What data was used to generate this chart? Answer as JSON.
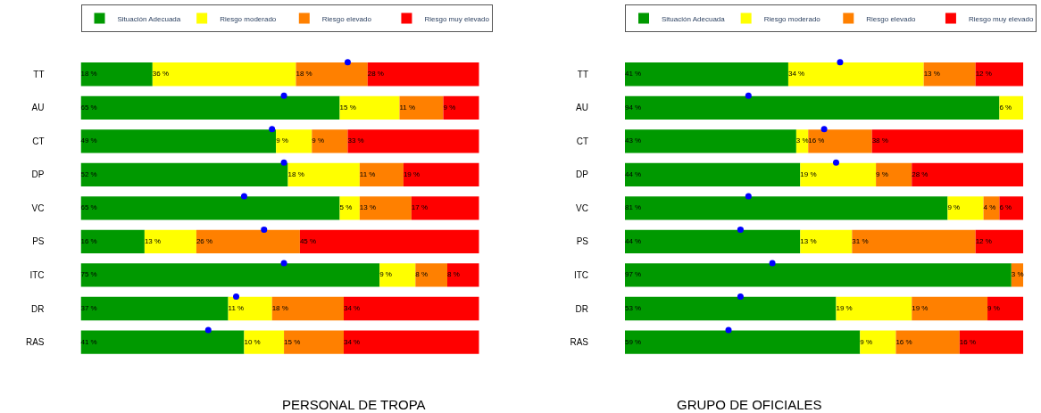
{
  "chart_data": [
    {
      "type": "bar",
      "orientation": "horizontal",
      "stacked": true,
      "title": "PERSONAL DE TROPA",
      "legend": "top",
      "tick_labels": "y",
      "xlim": [
        0,
        100
      ],
      "categories": [
        "TT",
        "AU",
        "CT",
        "DP",
        "VC",
        "PS",
        "ITC",
        "DR",
        "RAS"
      ],
      "series": [
        {
          "name": "Situación Adecuada",
          "color": "#009900",
          "values": [
            18,
            65,
            49,
            52,
            65,
            16,
            75,
            37,
            41
          ],
          "value_labels": [
            "18 %",
            "65 %",
            "49 %",
            "52 %",
            "65 %",
            "16 %",
            "75 %",
            "37 %",
            "41 %"
          ]
        },
        {
          "name": "Riesgo moderado",
          "color": "#ffff00",
          "values": [
            36,
            15,
            9,
            18,
            5,
            13,
            9,
            11,
            10
          ],
          "value_labels": [
            "36 %",
            "15 %",
            "9 %",
            "18 %",
            "5 %",
            "13 %",
            "9 %",
            "11 %",
            "10 %"
          ]
        },
        {
          "name": "Riesgo elevado",
          "color": "#ff8000",
          "values": [
            18,
            11,
            9,
            11,
            13,
            26,
            8,
            18,
            15
          ],
          "value_labels": [
            "18 %",
            "11 %",
            "9 %",
            "11 %",
            "13 %",
            "26 %",
            "8 %",
            "18 %",
            "15 %"
          ]
        },
        {
          "name": "Riesgo muy elevado",
          "color": "#ff0000",
          "values": [
            28,
            9,
            33,
            19,
            17,
            45,
            8,
            34,
            34
          ],
          "value_labels": [
            "28 %",
            "9 %",
            "33 %",
            "19 %",
            "17 %",
            "45 %",
            "8 %",
            "34 %",
            "34 %"
          ]
        },
        {
          "type": "scatter",
          "marker": "circle",
          "color": "#0000ff",
          "values": [
            67,
            51,
            48,
            51,
            41,
            46,
            51,
            39,
            32
          ]
        }
      ]
    },
    {
      "type": "bar",
      "orientation": "horizontal",
      "stacked": true,
      "title": "GRUPO DE OFICIALES",
      "legend": "top",
      "tick_labels": "y",
      "xlim": [
        0,
        100
      ],
      "categories": [
        "TT",
        "AU",
        "CT",
        "DP",
        "VC",
        "PS",
        "ITC",
        "DR",
        "RAS"
      ],
      "series": [
        {
          "name": "Situación Adecuada",
          "color": "#009900",
          "values": [
            41,
            94,
            43,
            44,
            81,
            44,
            97,
            53,
            59
          ],
          "value_labels": [
            "41 %",
            "94 %",
            "43 %",
            "44 %",
            "81 %",
            "44 %",
            "97 %",
            "53 %",
            "59 %"
          ]
        },
        {
          "name": "Riesgo moderado",
          "color": "#ffff00",
          "values": [
            34,
            6,
            3,
            19,
            9,
            13,
            0,
            19,
            9
          ],
          "value_labels": [
            "34 %",
            "6 %",
            "3 %",
            "19 %",
            "9 %",
            "13 %",
            null,
            "19 %",
            "9 %"
          ]
        },
        {
          "name": "Riesgo elevado",
          "color": "#ff8000",
          "values": [
            13,
            0,
            16,
            9,
            4,
            31,
            3,
            19,
            16
          ],
          "value_labels": [
            "13 %",
            null,
            "16 %",
            "9 %",
            "4 %",
            "31 %",
            "3 %",
            "19 %",
            "16 %"
          ]
        },
        {
          "name": "Riesgo muy elevado",
          "color": "#ff0000",
          "values": [
            12,
            0,
            38,
            28,
            6,
            12,
            0,
            9,
            16
          ],
          "value_labels": [
            "12 %",
            null,
            "38 %",
            "28 %",
            "6 %",
            "12 %",
            null,
            "9 %",
            "16 %"
          ]
        },
        {
          "type": "scatter",
          "marker": "circle",
          "color": "#0000ff",
          "values": [
            54,
            31,
            50,
            53,
            31,
            29,
            37,
            29,
            26
          ]
        }
      ]
    }
  ]
}
